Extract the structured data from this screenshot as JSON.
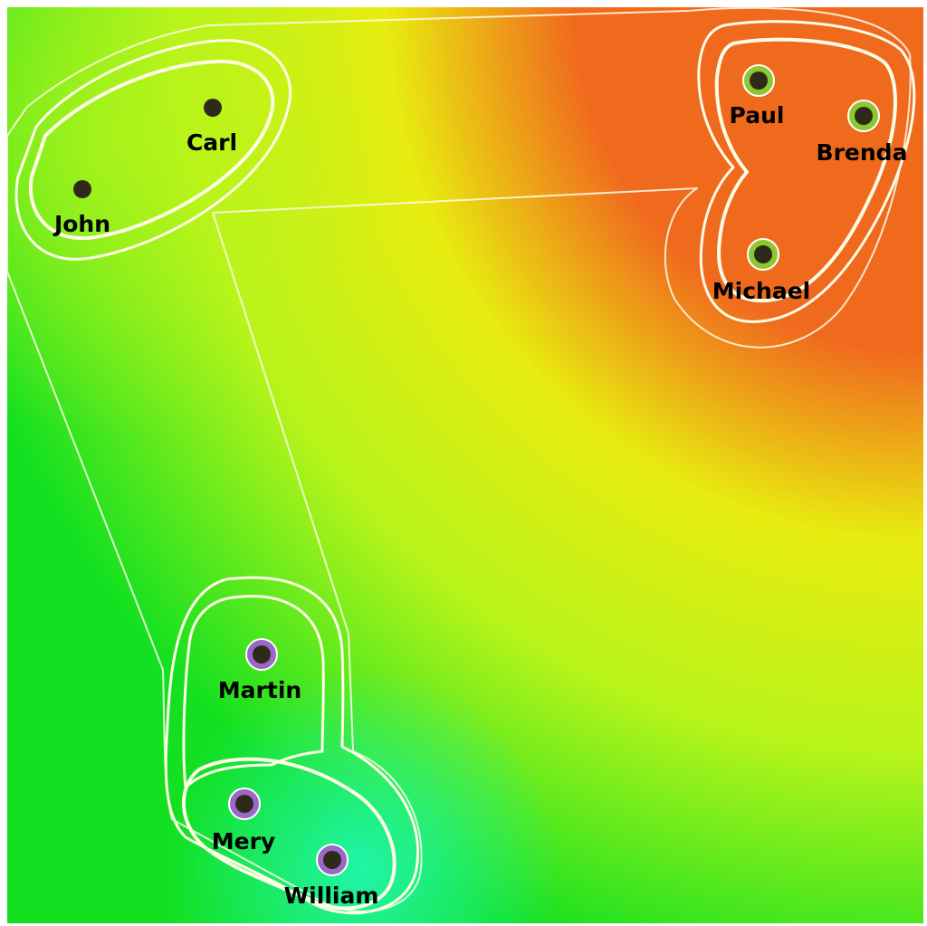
{
  "colors": {
    "orange": "#f06a1e",
    "yellow": "#e8ec10",
    "lime": "#b8f41a",
    "green": "#12e020",
    "cyan": "#22f6b0",
    "contour": "#fffce6",
    "group_a_node": "#8ec830",
    "group_b_node": "#9a68c8",
    "node_center": "#2e2a1a"
  },
  "nodes": [
    {
      "id": "john",
      "label": "John"
    },
    {
      "id": "carl",
      "label": "Carl"
    },
    {
      "id": "paul",
      "label": "Paul"
    },
    {
      "id": "brenda",
      "label": "Brenda"
    },
    {
      "id": "michael",
      "label": "Michael"
    },
    {
      "id": "martin",
      "label": "Martin"
    },
    {
      "id": "mery",
      "label": "Mery"
    },
    {
      "id": "william",
      "label": "William"
    }
  ]
}
